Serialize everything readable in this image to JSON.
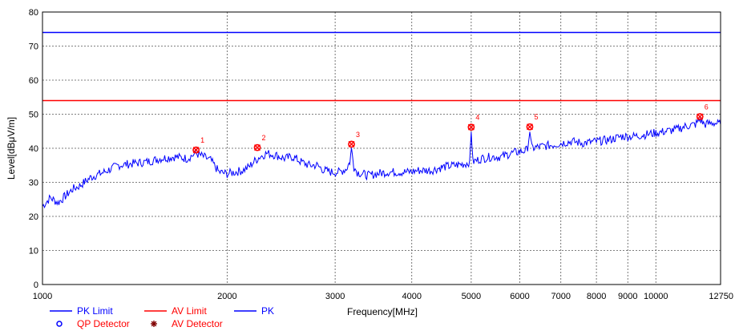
{
  "chart_data": {
    "type": "line",
    "title": "",
    "xlabel": "Frequency[MHz]",
    "ylabel": "Level[dBμV/m]",
    "x_scale": "log",
    "xlim": [
      1000,
      12750
    ],
    "ylim": [
      0,
      80
    ],
    "grid": true,
    "y_ticks": [
      "0",
      "10",
      "20",
      "30",
      "40",
      "50",
      "60",
      "70",
      "80"
    ],
    "x_ticks": [
      {
        "value": 1000,
        "label": "1000"
      },
      {
        "value": 2000,
        "label": "2000"
      },
      {
        "value": 3000,
        "label": "3000"
      },
      {
        "value": 4000,
        "label": "4000"
      },
      {
        "value": 5000,
        "label": "5000"
      },
      {
        "value": 6000,
        "label": "6000"
      },
      {
        "value": 7000,
        "label": "7000"
      },
      {
        "value": 8000,
        "label": "8000"
      },
      {
        "value": 9000,
        "label": "9000"
      },
      {
        "value": 10000,
        "label": "10000"
      },
      {
        "value": 12750,
        "label": "12750"
      }
    ],
    "limits": [
      {
        "name": "PK Limit",
        "value": 74,
        "color": "#0000ff"
      },
      {
        "name": "AV Limit",
        "value": 54,
        "color": "#ff0000"
      }
    ],
    "series": [
      {
        "name": "PK",
        "color": "#0000ff",
        "x": [
          1000,
          1030,
          1060,
          1090,
          1120,
          1150,
          1200,
          1260,
          1330,
          1400,
          1480,
          1560,
          1640,
          1720,
          1780,
          1830,
          1880,
          1940,
          2000,
          2060,
          2120,
          2170,
          2210,
          2260,
          2320,
          2400,
          2480,
          2560,
          2640,
          2720,
          2800,
          2880,
          2960,
          3050,
          3130,
          3170,
          3190,
          3220,
          3260,
          3320,
          3400,
          3500,
          3650,
          3800,
          3950,
          4100,
          4300,
          4500,
          4700,
          4900,
          4970,
          5000,
          5030,
          5200,
          5400,
          5600,
          5800,
          6000,
          6180,
          6230,
          6280,
          6500,
          6800,
          7000,
          7300,
          7600,
          8000,
          8400,
          8800,
          9200,
          9600,
          10000,
          10400,
          10800,
          11200,
          11600,
          11800,
          12000,
          12400,
          12750
        ],
        "values": [
          23,
          25.5,
          24,
          26,
          28,
          29,
          31.5,
          33,
          35,
          35.5,
          36,
          37,
          37.5,
          37,
          38.5,
          37.5,
          36.5,
          33,
          32.5,
          33,
          33.5,
          34.5,
          36,
          37.5,
          38.5,
          38,
          37,
          37.5,
          36,
          35,
          35,
          33.5,
          33,
          33,
          34,
          36,
          40,
          34.5,
          33,
          32.5,
          32,
          32.5,
          33,
          33,
          33,
          33.5,
          33.5,
          34.5,
          35,
          35.5,
          36,
          45,
          36,
          37,
          37.5,
          37.5,
          38.5,
          39,
          39.5,
          45,
          40,
          40.5,
          41,
          41.5,
          42,
          41.5,
          42,
          42.5,
          43.5,
          43.5,
          44,
          44.5,
          45,
          45.5,
          46.5,
          47,
          48.5,
          47,
          47.5,
          47
        ]
      }
    ],
    "markers": [
      {
        "label": "1",
        "x": 1780,
        "y": 39.5
      },
      {
        "label": "2",
        "x": 2240,
        "y": 40.2
      },
      {
        "label": "3",
        "x": 3190,
        "y": 41.2
      },
      {
        "label": "4",
        "x": 5000,
        "y": 46.2
      },
      {
        "label": "5",
        "x": 6230,
        "y": 46.3
      },
      {
        "label": "6",
        "x": 11800,
        "y": 49.3
      }
    ]
  },
  "legend": [
    {
      "name": "PK Limit",
      "color": "#0000ff",
      "kind": "line"
    },
    {
      "name": "AV Limit",
      "color": "#ff0000",
      "kind": "line"
    },
    {
      "name": "PK",
      "color": "#0000ff",
      "kind": "line"
    },
    {
      "name": "QP Detector",
      "color": "#0000ff",
      "kind": "circle",
      "text_color": "#ff0000"
    },
    {
      "name": "AV Detector",
      "color": "#800000",
      "kind": "star",
      "text_color": "#ff0000"
    }
  ]
}
